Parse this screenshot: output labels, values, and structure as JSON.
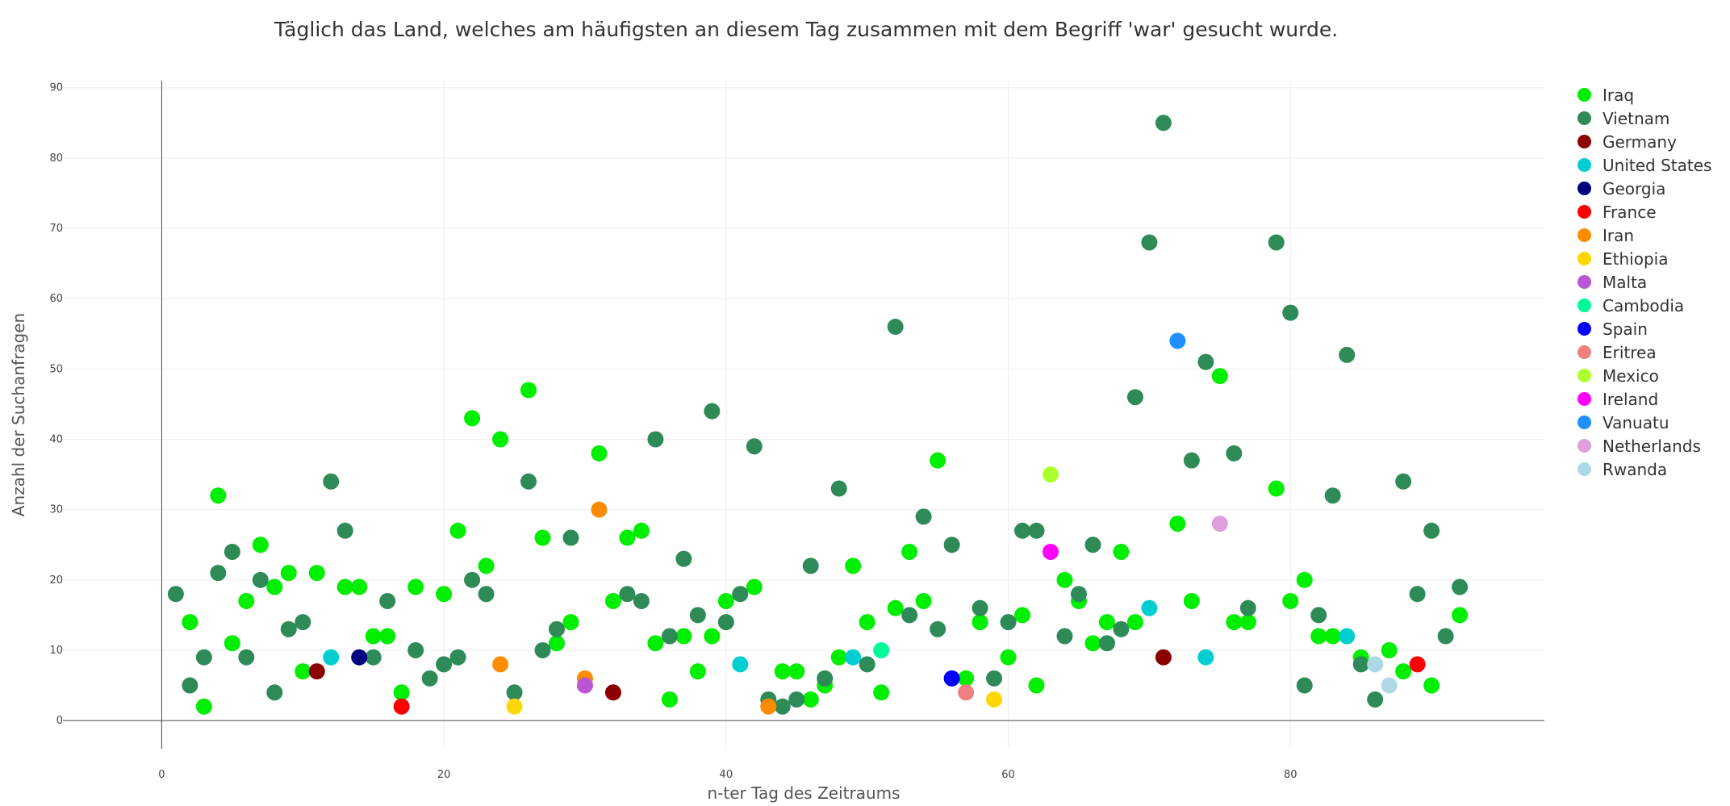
{
  "chart_data": {
    "type": "scatter",
    "title": "Täglich das Land, welches am häufigsten an diesem Tag zusammen mit dem Begriff 'war' gesucht wurde.",
    "xlabel": "n-ter Tag des Zeitraums",
    "ylabel": "Anzahl der Suchanfragen",
    "xlim": [
      -7,
      98
    ],
    "ylim": [
      -4,
      91
    ],
    "x_ticks": [
      0,
      20,
      40,
      60,
      80
    ],
    "y_ticks": [
      0,
      10,
      20,
      30,
      40,
      50,
      60,
      70,
      80,
      90
    ],
    "grid": true,
    "legend_position": "right",
    "series": [
      {
        "name": "Iraq",
        "color": "#00ee00",
        "points": [
          [
            2,
            14
          ],
          [
            3,
            2
          ],
          [
            4,
            32
          ],
          [
            5,
            11
          ],
          [
            6,
            17
          ],
          [
            7,
            25
          ],
          [
            8,
            19
          ],
          [
            9,
            21
          ],
          [
            10,
            7
          ],
          [
            11,
            21
          ],
          [
            13,
            19
          ],
          [
            14,
            19
          ],
          [
            15,
            12
          ],
          [
            16,
            12
          ],
          [
            17,
            4
          ],
          [
            18,
            19
          ],
          [
            20,
            18
          ],
          [
            21,
            27
          ],
          [
            22,
            43
          ],
          [
            23,
            22
          ],
          [
            24,
            40
          ],
          [
            26,
            47
          ],
          [
            27,
            26
          ],
          [
            28,
            11
          ],
          [
            29,
            14
          ],
          [
            31,
            38
          ],
          [
            32,
            17
          ],
          [
            33,
            26
          ],
          [
            34,
            27
          ],
          [
            35,
            11
          ],
          [
            36,
            3
          ],
          [
            37,
            12
          ],
          [
            38,
            7
          ],
          [
            39,
            12
          ],
          [
            40,
            17
          ],
          [
            42,
            19
          ],
          [
            44,
            7
          ],
          [
            45,
            7
          ],
          [
            46,
            3
          ],
          [
            47,
            5
          ],
          [
            48,
            9
          ],
          [
            49,
            22
          ],
          [
            50,
            14
          ],
          [
            51,
            4
          ],
          [
            52,
            16
          ],
          [
            53,
            24
          ],
          [
            54,
            17
          ],
          [
            55,
            37
          ],
          [
            57,
            6
          ],
          [
            58,
            14
          ],
          [
            60,
            9
          ],
          [
            61,
            15
          ],
          [
            62,
            5
          ],
          [
            64,
            20
          ],
          [
            65,
            17
          ],
          [
            66,
            11
          ],
          [
            67,
            14
          ],
          [
            68,
            24
          ],
          [
            69,
            14
          ],
          [
            72,
            28
          ],
          [
            73,
            17
          ],
          [
            75,
            49
          ],
          [
            76,
            14
          ],
          [
            77,
            14
          ],
          [
            79,
            33
          ],
          [
            80,
            17
          ],
          [
            81,
            20
          ],
          [
            82,
            12
          ],
          [
            83,
            12
          ],
          [
            85,
            9
          ],
          [
            87,
            10
          ],
          [
            88,
            7
          ],
          [
            90,
            5
          ],
          [
            92,
            15
          ]
        ]
      },
      {
        "name": "Vietnam",
        "color": "#2e8b57",
        "points": [
          [
            1,
            18
          ],
          [
            2,
            5
          ],
          [
            3,
            9
          ],
          [
            4,
            21
          ],
          [
            5,
            24
          ],
          [
            6,
            9
          ],
          [
            7,
            20
          ],
          [
            8,
            4
          ],
          [
            9,
            13
          ],
          [
            10,
            14
          ],
          [
            12,
            34
          ],
          [
            13,
            27
          ],
          [
            15,
            9
          ],
          [
            16,
            17
          ],
          [
            18,
            10
          ],
          [
            19,
            6
          ],
          [
            20,
            8
          ],
          [
            21,
            9
          ],
          [
            22,
            20
          ],
          [
            23,
            18
          ],
          [
            25,
            4
          ],
          [
            26,
            34
          ],
          [
            27,
            10
          ],
          [
            28,
            13
          ],
          [
            29,
            26
          ],
          [
            33,
            18
          ],
          [
            34,
            17
          ],
          [
            35,
            40
          ],
          [
            36,
            12
          ],
          [
            37,
            23
          ],
          [
            38,
            15
          ],
          [
            39,
            44
          ],
          [
            40,
            14
          ],
          [
            41,
            18
          ],
          [
            42,
            39
          ],
          [
            43,
            3
          ],
          [
            44,
            2
          ],
          [
            45,
            3
          ],
          [
            46,
            22
          ],
          [
            47,
            6
          ],
          [
            48,
            33
          ],
          [
            50,
            8
          ],
          [
            52,
            56
          ],
          [
            53,
            15
          ],
          [
            54,
            29
          ],
          [
            55,
            13
          ],
          [
            56,
            25
          ],
          [
            58,
            16
          ],
          [
            59,
            6
          ],
          [
            60,
            14
          ],
          [
            61,
            27
          ],
          [
            62,
            27
          ],
          [
            64,
            12
          ],
          [
            65,
            18
          ],
          [
            66,
            25
          ],
          [
            67,
            11
          ],
          [
            68,
            13
          ],
          [
            69,
            46
          ],
          [
            70,
            68
          ],
          [
            71,
            85
          ],
          [
            73,
            37
          ],
          [
            74,
            51
          ],
          [
            76,
            38
          ],
          [
            77,
            16
          ],
          [
            79,
            68
          ],
          [
            80,
            58
          ],
          [
            81,
            5
          ],
          [
            82,
            15
          ],
          [
            83,
            32
          ],
          [
            84,
            52
          ],
          [
            85,
            8
          ],
          [
            86,
            3
          ],
          [
            88,
            34
          ],
          [
            89,
            18
          ],
          [
            90,
            27
          ],
          [
            91,
            12
          ],
          [
            92,
            19
          ]
        ]
      },
      {
        "name": "Germany",
        "color": "#8b0000",
        "points": [
          [
            11,
            7
          ],
          [
            32,
            4
          ],
          [
            71,
            9
          ]
        ]
      },
      {
        "name": "United States",
        "color": "#00ced1",
        "points": [
          [
            12,
            9
          ],
          [
            41,
            8
          ],
          [
            49,
            9
          ],
          [
            70,
            16
          ],
          [
            74,
            9
          ],
          [
            84,
            12
          ]
        ]
      },
      {
        "name": "Georgia",
        "color": "#000080",
        "points": [
          [
            14,
            9
          ]
        ]
      },
      {
        "name": "France",
        "color": "#ff0000",
        "points": [
          [
            17,
            2
          ],
          [
            89,
            8
          ]
        ]
      },
      {
        "name": "Iran",
        "color": "#ff8c00",
        "points": [
          [
            24,
            8
          ],
          [
            30,
            6
          ],
          [
            31,
            30
          ],
          [
            43,
            2
          ]
        ]
      },
      {
        "name": "Ethiopia",
        "color": "#ffd700",
        "points": [
          [
            25,
            2
          ],
          [
            59,
            3
          ]
        ]
      },
      {
        "name": "Malta",
        "color": "#ba55d3",
        "points": [
          [
            30,
            5
          ]
        ]
      },
      {
        "name": "Cambodia",
        "color": "#00fa9a",
        "points": [
          [
            51,
            10
          ]
        ]
      },
      {
        "name": "Spain",
        "color": "#0000ff",
        "points": [
          [
            56,
            6
          ]
        ]
      },
      {
        "name": "Eritrea",
        "color": "#f08080",
        "points": [
          [
            57,
            4
          ]
        ]
      },
      {
        "name": "Mexico",
        "color": "#adff2f",
        "points": [
          [
            63,
            35
          ]
        ]
      },
      {
        "name": "Ireland",
        "color": "#ff00ff",
        "points": [
          [
            63,
            24
          ]
        ]
      },
      {
        "name": "Vanuatu",
        "color": "#1e90ff",
        "points": [
          [
            72,
            54
          ]
        ]
      },
      {
        "name": "Netherlands",
        "color": "#dda0dd",
        "points": [
          [
            75,
            28
          ]
        ]
      },
      {
        "name": "Rwanda",
        "color": "#add8e6",
        "points": [
          [
            86,
            8
          ],
          [
            87,
            5
          ]
        ]
      }
    ]
  }
}
